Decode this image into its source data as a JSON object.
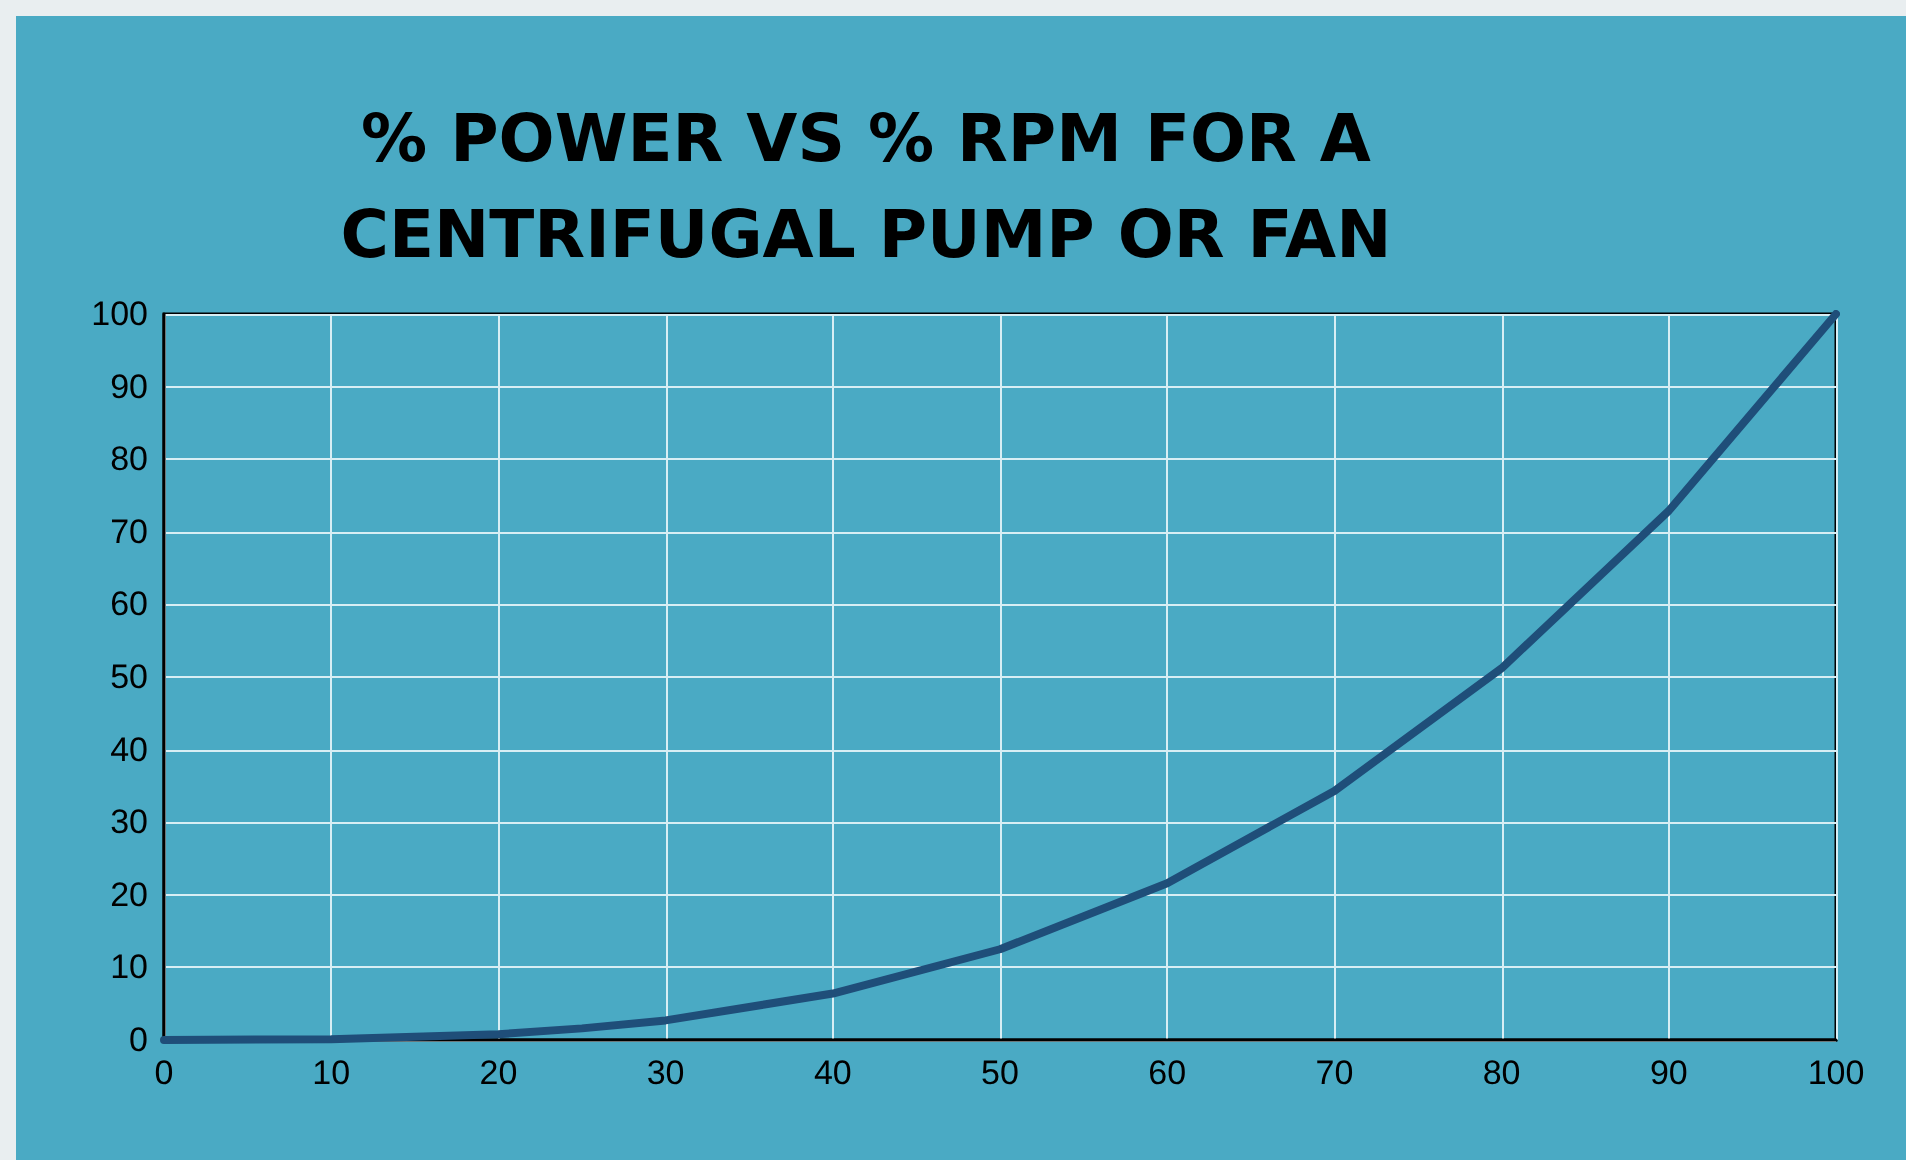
{
  "chart_data": {
    "type": "line",
    "title": "% POWER VS % RPM FOR A\nCENTRIFUGAL PUMP OR FAN",
    "x": [
      0,
      10,
      20,
      25,
      30,
      40,
      50,
      60,
      70,
      80,
      90,
      100
    ],
    "series": [
      {
        "color": "#1f4e79",
        "values": [
          0,
          0.1,
          0.8,
          1.6,
          2.7,
          6.4,
          12.5,
          21.6,
          34.3,
          51.2,
          72.9,
          100
        ]
      }
    ],
    "xlim": [
      0,
      100
    ],
    "xticks": [
      0,
      10,
      20,
      30,
      40,
      50,
      60,
      70,
      80,
      90,
      100
    ],
    "ylim": [
      0,
      100
    ],
    "yticks": [
      0,
      10,
      20,
      30,
      40,
      50,
      60,
      70,
      80,
      90,
      100
    ],
    "grid": true,
    "marker": "none",
    "line_style": "solid"
  }
}
